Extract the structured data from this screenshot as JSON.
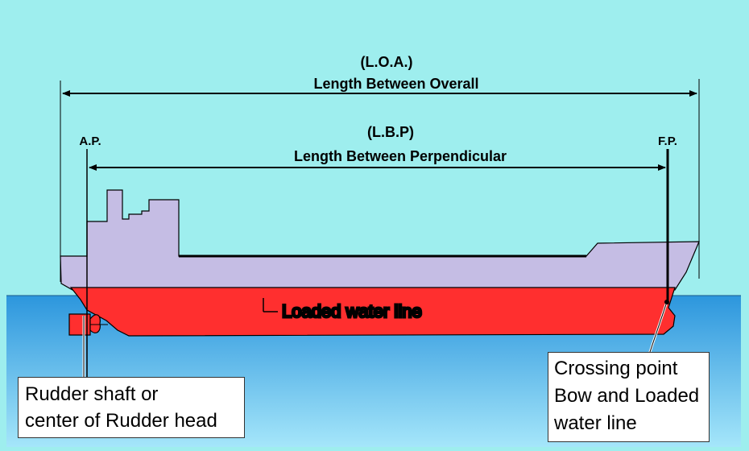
{
  "loa": {
    "abbr": "(L.O.A.)",
    "label": "Length Between Overall"
  },
  "lbp": {
    "abbr": "(L.B.P)",
    "label": "Length Between Perpendicular"
  },
  "ap_label": "A.P.",
  "fp_label": "F.P.",
  "water_line_label": "Loaded water line",
  "rudder_callout": {
    "line1": "Rudder shaft or",
    "line2": "center of Rudder head"
  },
  "bow_callout": {
    "line1": "Crossing point",
    "line2": "Bow and Loaded",
    "line3": "water line"
  },
  "colors": {
    "sky": "#9eeeee",
    "sea_top": "#2c96dd",
    "sea_bottom": "#9fe1f8",
    "hull_red": "#ff2f2f",
    "superstructure": "#c5bde4",
    "outline": "#000000"
  }
}
